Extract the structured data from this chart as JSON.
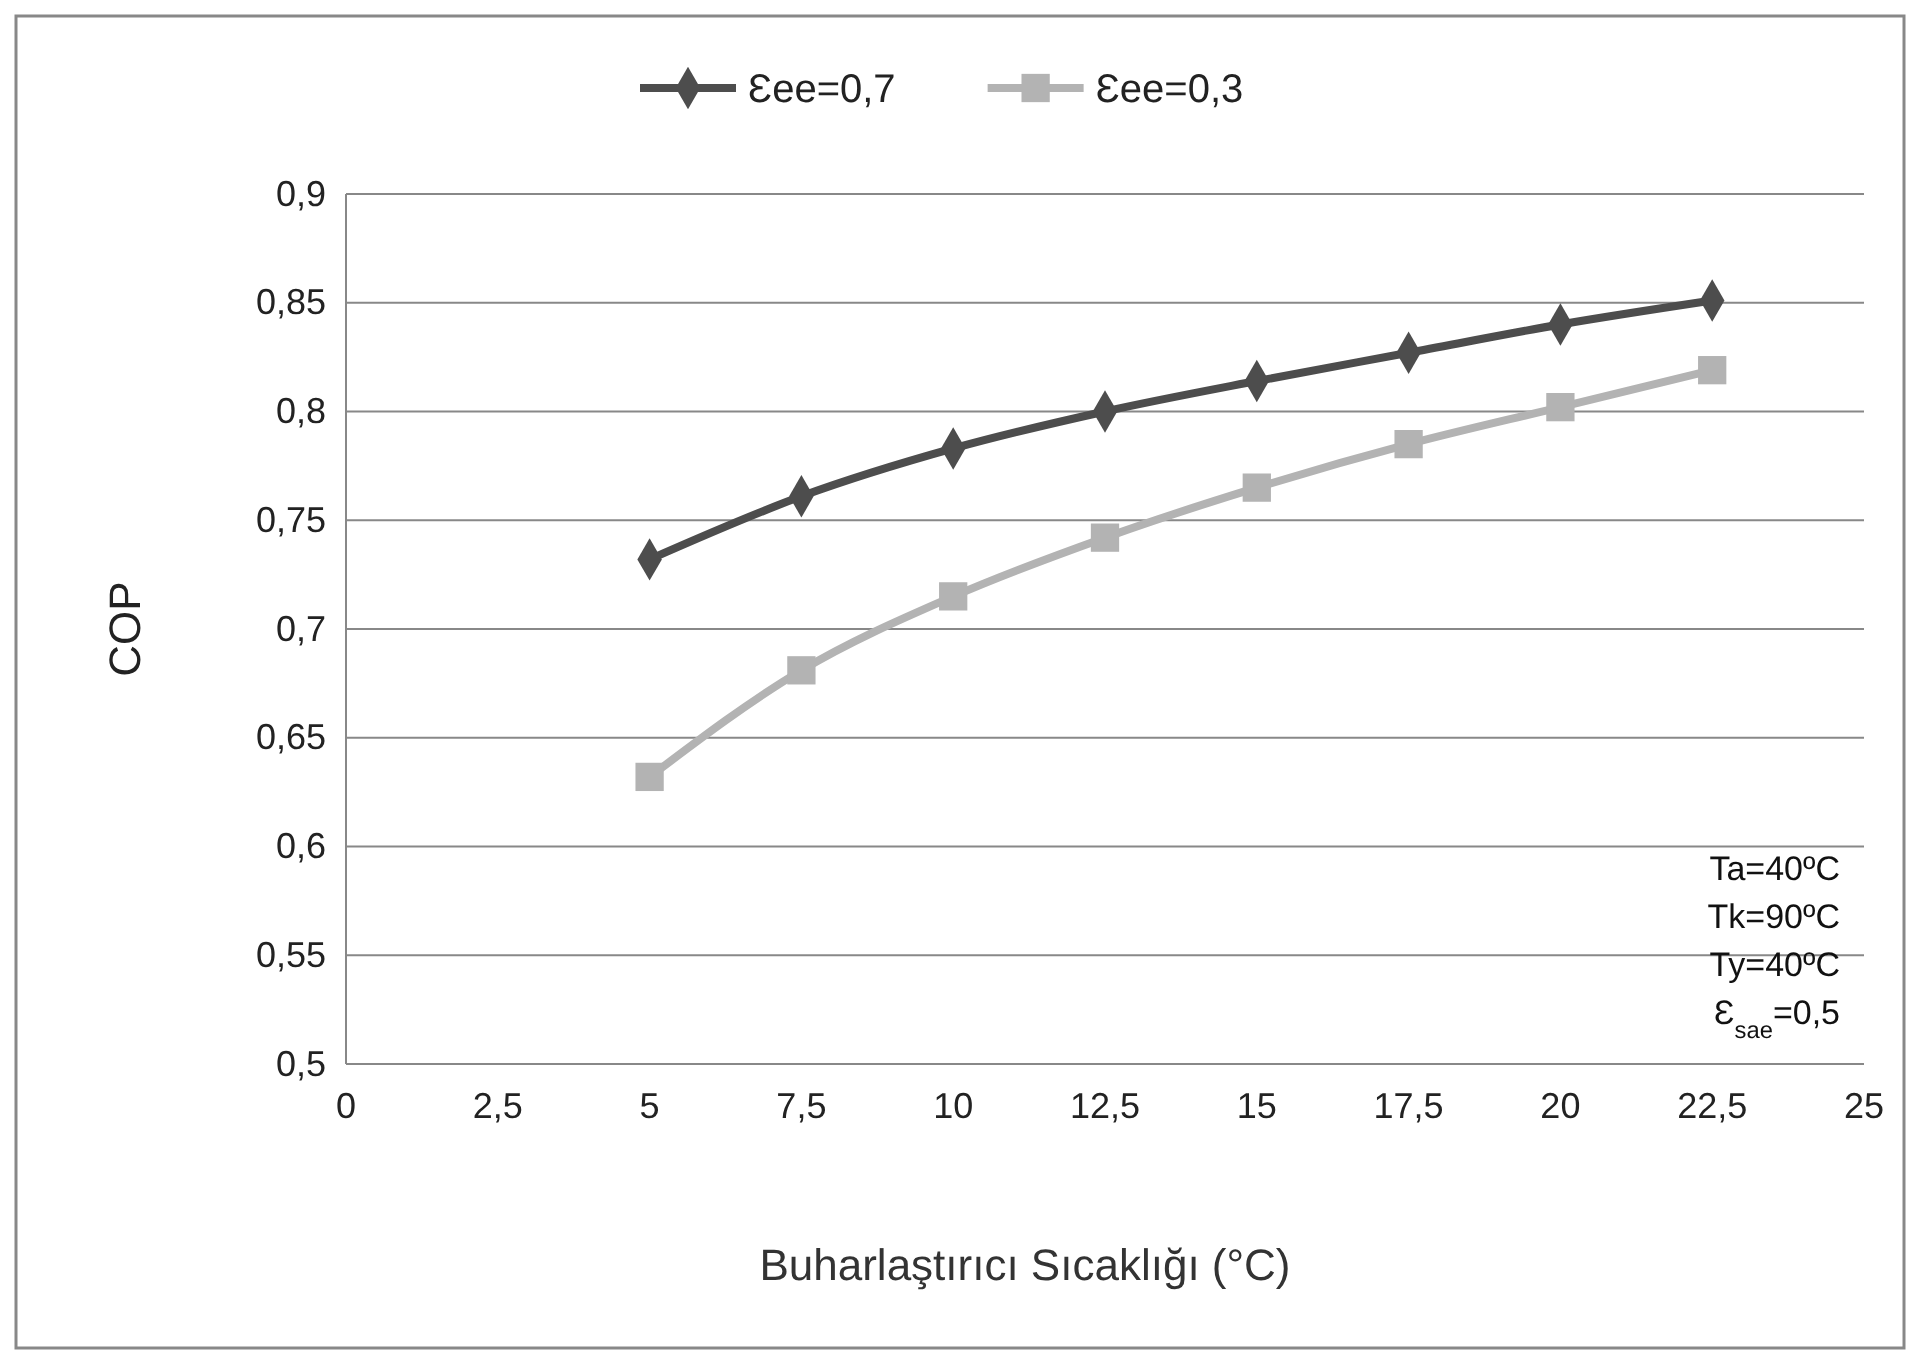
{
  "chart_data": {
    "type": "line",
    "xlabel": "Buharlaştırıcı Sıcaklığı (°C)",
    "ylabel": "COP",
    "x": [
      5,
      7.5,
      10,
      12.5,
      15,
      17.5,
      20,
      22.5
    ],
    "series": [
      {
        "name": "Ɛee=0,7",
        "color": "#4d4d4d",
        "marker": "diamond",
        "values": [
          0.732,
          0.761,
          0.783,
          0.8,
          0.814,
          0.827,
          0.84,
          0.851
        ]
      },
      {
        "name": "Ɛee=0,3",
        "color": "#b3b3b3",
        "marker": "square",
        "values": [
          0.632,
          0.681,
          0.715,
          0.742,
          0.765,
          0.785,
          0.802,
          0.819
        ]
      }
    ],
    "xlim": [
      0,
      25
    ],
    "xticks": [
      0,
      {
        "value": 2.5,
        "label": "2,5"
      },
      5,
      {
        "value": 7.5,
        "label": "7,5"
      },
      10,
      {
        "value": 12.5,
        "label": "12,5"
      },
      15,
      {
        "value": 17.5,
        "label": "17,5"
      },
      20,
      {
        "value": 22.5,
        "label": "22,5"
      },
      25
    ],
    "ylim": [
      0.5,
      0.9
    ],
    "yticks": [
      {
        "value": 0.5,
        "label": "0,5"
      },
      {
        "value": 0.55,
        "label": "0,55"
      },
      {
        "value": 0.6,
        "label": "0,6"
      },
      {
        "value": 0.65,
        "label": "0,65"
      },
      {
        "value": 0.7,
        "label": "0,7"
      },
      {
        "value": 0.75,
        "label": "0,75"
      },
      {
        "value": 0.8,
        "label": "0,8"
      },
      {
        "value": 0.85,
        "label": "0,85"
      },
      {
        "value": 0.9,
        "label": "0,9"
      }
    ],
    "grid": "y",
    "legend": "top",
    "line_style": "solid",
    "annotations": [
      "Ta=40ºC",
      "Tk=90ºC",
      "Ty=40ºC",
      "Ɛ$_{sae}$=0,5"
    ]
  }
}
